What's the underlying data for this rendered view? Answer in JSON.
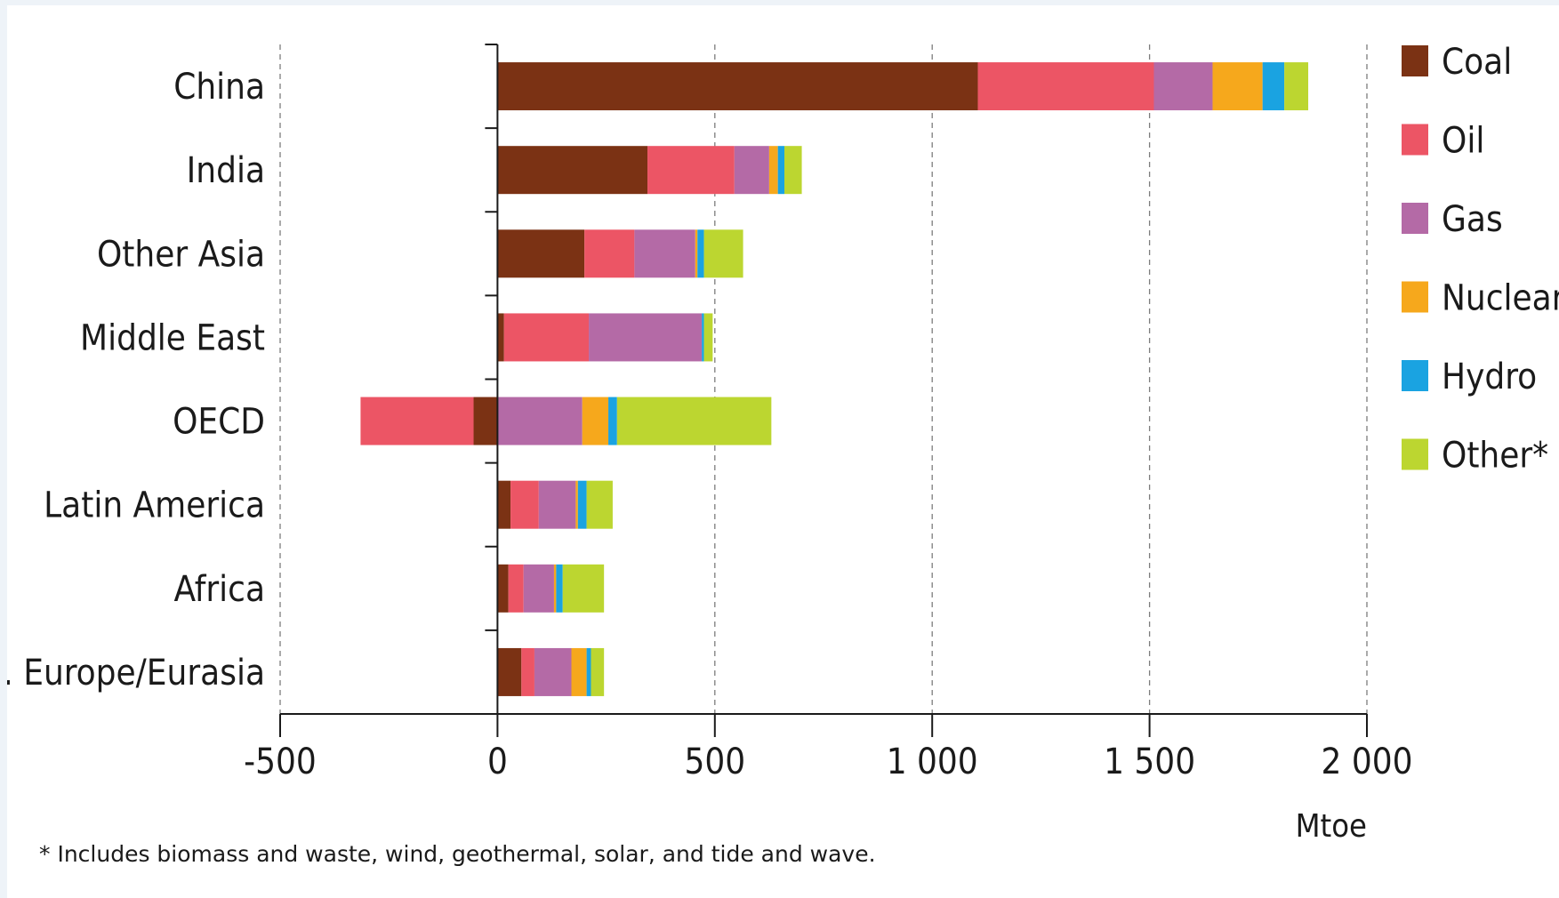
{
  "chart_data": {
    "type": "bar",
    "orientation": "horizontal",
    "stacked": true,
    "categories": [
      "China",
      "India",
      "Other Asia",
      "Middle East",
      "OECD",
      "Latin America",
      "Africa",
      "E. Europe/Eurasia"
    ],
    "series": [
      {
        "name": "Coal",
        "color": "#7b3214",
        "values": [
          1105,
          345,
          200,
          15,
          -55,
          30,
          25,
          55
        ]
      },
      {
        "name": "Oil",
        "color": "#ec5565",
        "values": [
          405,
          200,
          115,
          195,
          -260,
          65,
          35,
          30
        ]
      },
      {
        "name": "Gas",
        "color": "#b46aa6",
        "values": [
          135,
          80,
          140,
          260,
          195,
          85,
          70,
          85
        ]
      },
      {
        "name": "Nuclear",
        "color": "#f6a81c",
        "values": [
          115,
          20,
          5,
          0,
          60,
          5,
          5,
          35
        ]
      },
      {
        "name": "Hydro",
        "color": "#1aa3e1",
        "values": [
          50,
          15,
          15,
          5,
          20,
          20,
          15,
          10
        ]
      },
      {
        "name": "Other*",
        "color": "#bcd630",
        "values": [
          55,
          40,
          90,
          20,
          355,
          60,
          95,
          30
        ]
      }
    ],
    "xlim": [
      -500,
      2000
    ],
    "xticks": [
      {
        "value": -500,
        "label": "-500"
      },
      {
        "value": 0,
        "label": "0"
      },
      {
        "value": 500,
        "label": "500"
      },
      {
        "value": 1000,
        "label": "1 000"
      },
      {
        "value": 1500,
        "label": "1 500"
      },
      {
        "value": 2000,
        "label": "2 000"
      }
    ],
    "xlabel": "Mtoe",
    "grid": "vertical dashed",
    "legend_position": "right"
  },
  "footnote": "* Includes biomass and waste, wind, geothermal, solar, and tide and wave."
}
